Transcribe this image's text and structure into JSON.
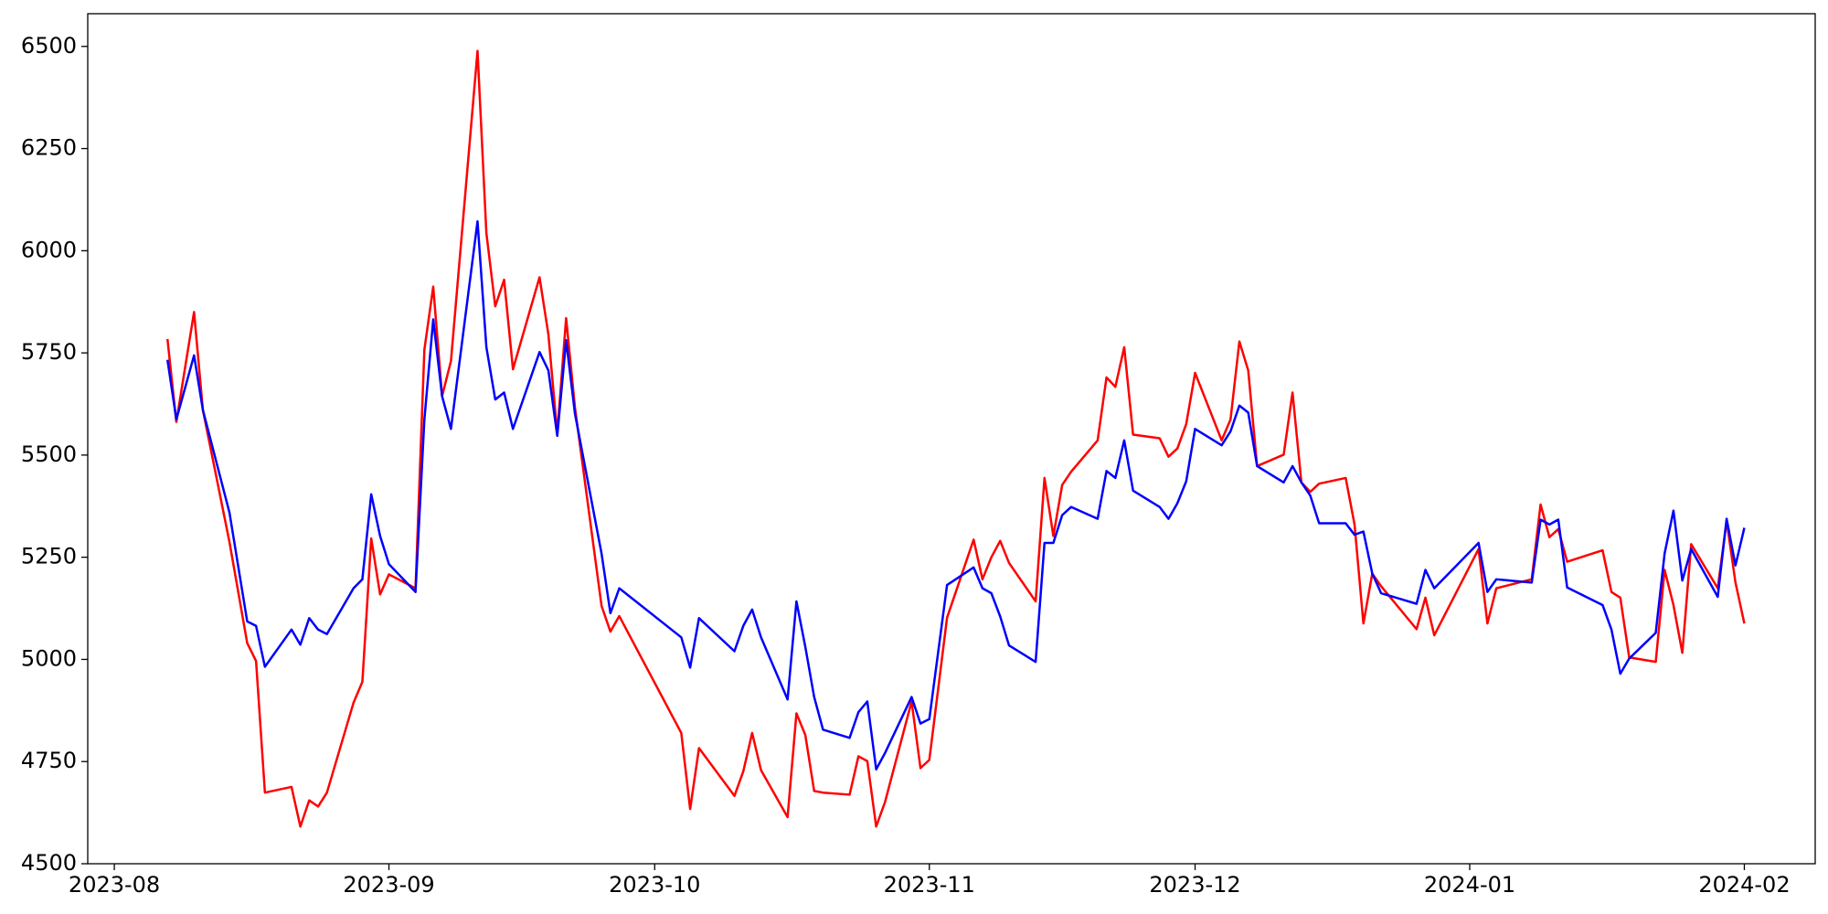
{
  "chart_data": {
    "type": "line",
    "x": [
      "2023-08-07",
      "2023-08-08",
      "2023-08-10",
      "2023-08-11",
      "2023-08-14",
      "2023-08-16",
      "2023-08-17",
      "2023-08-18",
      "2023-08-21",
      "2023-08-22",
      "2023-08-23",
      "2023-08-24",
      "2023-08-25",
      "2023-08-28",
      "2023-08-29",
      "2023-08-30",
      "2023-08-31",
      "2023-09-01",
      "2023-09-04",
      "2023-09-05",
      "2023-09-06",
      "2023-09-07",
      "2023-09-08",
      "2023-09-11",
      "2023-09-12",
      "2023-09-13",
      "2023-09-14",
      "2023-09-15",
      "2023-09-18",
      "2023-09-19",
      "2023-09-20",
      "2023-09-21",
      "2023-09-22",
      "2023-09-25",
      "2023-09-26",
      "2023-09-27",
      "2023-10-04",
      "2023-10-05",
      "2023-10-06",
      "2023-10-10",
      "2023-10-11",
      "2023-10-12",
      "2023-10-13",
      "2023-10-16",
      "2023-10-17",
      "2023-10-18",
      "2023-10-19",
      "2023-10-20",
      "2023-10-23",
      "2023-10-24",
      "2023-10-25",
      "2023-10-26",
      "2023-10-27",
      "2023-10-30",
      "2023-10-31",
      "2023-11-01",
      "2023-11-03",
      "2023-11-06",
      "2023-11-07",
      "2023-11-08",
      "2023-11-09",
      "2023-11-10",
      "2023-11-13",
      "2023-11-14",
      "2023-11-15",
      "2023-11-16",
      "2023-11-17",
      "2023-11-20",
      "2023-11-21",
      "2023-11-22",
      "2023-11-23",
      "2023-11-24",
      "2023-11-27",
      "2023-11-28",
      "2023-11-29",
      "2023-11-30",
      "2023-12-01",
      "2023-12-04",
      "2023-12-05",
      "2023-12-06",
      "2023-12-07",
      "2023-12-08",
      "2023-12-11",
      "2023-12-12",
      "2023-12-13",
      "2023-12-14",
      "2023-12-15",
      "2023-12-18",
      "2023-12-19",
      "2023-12-20",
      "2023-12-21",
      "2023-12-22",
      "2023-12-26",
      "2023-12-27",
      "2023-12-28",
      "2024-01-02",
      "2024-01-03",
      "2024-01-04",
      "2024-01-08",
      "2024-01-09",
      "2024-01-10",
      "2024-01-11",
      "2024-01-12",
      "2024-01-16",
      "2024-01-17",
      "2024-01-18",
      "2024-01-19",
      "2024-01-22",
      "2024-01-23",
      "2024-01-24",
      "2024-01-25",
      "2024-01-26",
      "2024-01-29",
      "2024-01-30",
      "2024-01-31",
      "2024-02-01"
    ],
    "series": [
      {
        "color": "#ff0000",
        "values": [
          5784,
          5581,
          5850,
          5610,
          5287,
          5040,
          4996,
          4674,
          4688,
          4591,
          4655,
          4640,
          4674,
          4894,
          4945,
          5296,
          5159,
          5208,
          5174,
          5758,
          5912,
          5644,
          5730,
          6489,
          6043,
          5864,
          5929,
          5710,
          5935,
          5795,
          5553,
          5835,
          5616,
          5131,
          5068,
          5106,
          4820,
          4634,
          4783,
          4666,
          4726,
          4820,
          4729,
          4614,
          4868,
          4815,
          4678,
          4674,
          4669,
          4763,
          4751,
          4591,
          4651,
          4897,
          4734,
          4754,
          5102,
          5293,
          5196,
          5250,
          5290,
          5236,
          5142,
          5444,
          5302,
          5427,
          5459,
          5536,
          5690,
          5667,
          5764,
          5550,
          5541,
          5496,
          5516,
          5576,
          5701,
          5536,
          5587,
          5778,
          5707,
          5473,
          5501,
          5653,
          5433,
          5410,
          5430,
          5444,
          5330,
          5088,
          5210,
          5179,
          5074,
          5151,
          5059,
          5270,
          5088,
          5174,
          5196,
          5379,
          5299,
          5319,
          5239,
          5267,
          5165,
          5151,
          5005,
          4994,
          5219,
          5133,
          5016,
          5282,
          5174,
          5339,
          5188,
          5088
        ]
      },
      {
        "color": "#0000ff",
        "values": [
          5733,
          5587,
          5744,
          5610,
          5359,
          5093,
          5082,
          4982,
          5073,
          5036,
          5101,
          5073,
          5062,
          5174,
          5196,
          5404,
          5302,
          5233,
          5165,
          5587,
          5832,
          5644,
          5564,
          6072,
          5764,
          5636,
          5653,
          5564,
          5752,
          5707,
          5547,
          5781,
          5601,
          5259,
          5113,
          5174,
          5054,
          4980,
          5101,
          5020,
          5082,
          5122,
          5054,
          4902,
          5142,
          5031,
          4908,
          4828,
          4808,
          4871,
          4897,
          4731,
          4771,
          4908,
          4843,
          4854,
          5182,
          5225,
          5174,
          5162,
          5105,
          5034,
          4994,
          5285,
          5285,
          5353,
          5373,
          5344,
          5461,
          5444,
          5536,
          5413,
          5373,
          5344,
          5382,
          5436,
          5564,
          5524,
          5558,
          5621,
          5604,
          5473,
          5433,
          5473,
          5433,
          5401,
          5333,
          5333,
          5305,
          5313,
          5210,
          5162,
          5136,
          5219,
          5174,
          5285,
          5165,
          5196,
          5188,
          5342,
          5330,
          5342,
          5176,
          5133,
          5073,
          4965,
          5002,
          5065,
          5259,
          5364,
          5193,
          5270,
          5153,
          5344,
          5230,
          5322
        ]
      }
    ],
    "xlim": [
      "2023-07-29",
      "2024-02-09"
    ],
    "xticks": [
      {
        "value": "2023-08-01",
        "label": "2023-08"
      },
      {
        "value": "2023-09-01",
        "label": "2023-09"
      },
      {
        "value": "2023-10-01",
        "label": "2023-10"
      },
      {
        "value": "2023-11-01",
        "label": "2023-11"
      },
      {
        "value": "2023-12-01",
        "label": "2023-12"
      },
      {
        "value": "2024-01-01",
        "label": "2024-01"
      },
      {
        "value": "2024-02-01",
        "label": "2024-02"
      }
    ],
    "ylim": [
      4500,
      6580
    ],
    "yticks": [
      4500,
      4750,
      5000,
      5250,
      5500,
      5750,
      6000,
      6250,
      6500
    ]
  }
}
